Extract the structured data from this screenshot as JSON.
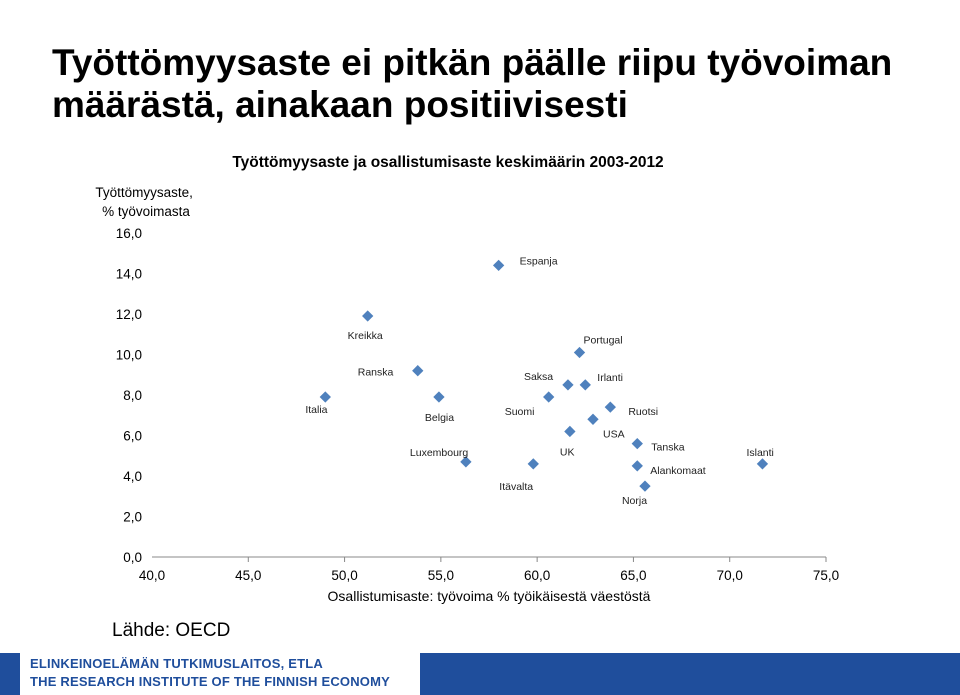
{
  "slide": {
    "title": "Työttömyysaste ei pitkän päälle riipu työvoiman määrästä, ainakaan positiivisesti",
    "source": "Lähde: OECD",
    "footer_line1": "ELINKEINOELÄMÄN  TUTKIMUSLAITOS, ETLA",
    "footer_line2": "THE RESEARCH  INSTITUTE OF THE FINNISH ECONOMY",
    "brand_color": "#1f4e9c"
  },
  "chart_data": {
    "type": "scatter",
    "title": "Työttömyysaste ja osallistumisaste keskimäärin 2003-2012",
    "ylabel": "Työttömyysaste, % työvoimasta",
    "xlabel": "Osallistumisaste: työvoima % työikäisestä väestöstä",
    "xlim": [
      40,
      75
    ],
    "ylim": [
      0,
      16
    ],
    "x_ticks": [
      "40,0",
      "45,0",
      "50,0",
      "55,0",
      "60,0",
      "65,0",
      "70,0",
      "75,0"
    ],
    "y_ticks": [
      "0,0",
      "2,0",
      "4,0",
      "6,0",
      "8,0",
      "10,0",
      "12,0",
      "14,0",
      "16,0"
    ],
    "grid": false,
    "marker_color": "#4f81bd",
    "points": [
      {
        "label": "Italia",
        "x": 49.0,
        "y": 7.9
      },
      {
        "label": "Kreikka",
        "x": 51.2,
        "y": 11.9
      },
      {
        "label": "Ranska",
        "x": 53.8,
        "y": 9.2
      },
      {
        "label": "Belgia",
        "x": 54.9,
        "y": 7.9
      },
      {
        "label": "Luxembourg",
        "x": 56.3,
        "y": 4.7
      },
      {
        "label": "Espanja",
        "x": 58.0,
        "y": 14.4
      },
      {
        "label": "Itävalta",
        "x": 59.8,
        "y": 4.6
      },
      {
        "label": "Suomi",
        "x": 60.6,
        "y": 7.9
      },
      {
        "label": "Saksa",
        "x": 61.6,
        "y": 8.5
      },
      {
        "label": "UK",
        "x": 61.7,
        "y": 6.2
      },
      {
        "label": "Portugal",
        "x": 62.2,
        "y": 10.1
      },
      {
        "label": "Irlanti",
        "x": 62.5,
        "y": 8.5
      },
      {
        "label": "USA",
        "x": 62.9,
        "y": 6.8
      },
      {
        "label": "Ruotsi",
        "x": 63.8,
        "y": 7.4
      },
      {
        "label": "Tanska",
        "x": 65.2,
        "y": 5.6
      },
      {
        "label": "Alankomaat",
        "x": 65.2,
        "y": 4.5
      },
      {
        "label": "Norja",
        "x": 65.6,
        "y": 3.5
      },
      {
        "label": "Islanti",
        "x": 71.7,
        "y": 4.6
      }
    ]
  }
}
